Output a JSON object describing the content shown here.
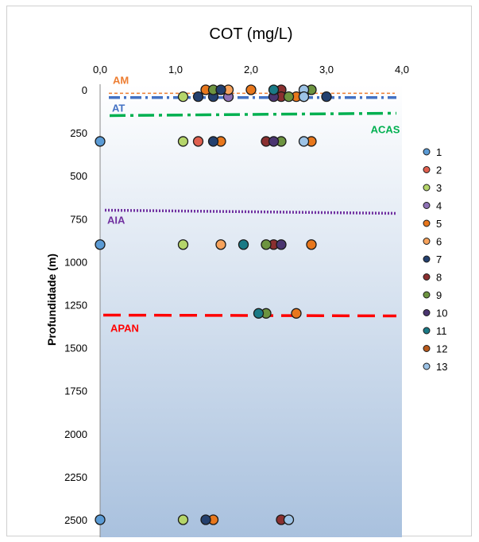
{
  "chart_data": {
    "type": "scatter",
    "title": "COT (mg/L)",
    "xlabel": "",
    "ylabel": "Profundidade (m)",
    "xlim": [
      0,
      4
    ],
    "ylim": [
      0,
      2500
    ],
    "y_inverted": true,
    "x_axis_position": "top",
    "xticks": [
      "0,0",
      "1,0",
      "2,0",
      "3,0",
      "4,0"
    ],
    "yticks": [
      "0",
      "250",
      "500",
      "750",
      "1000",
      "1250",
      "1500",
      "1750",
      "2000",
      "2250",
      "2500"
    ],
    "legend_position": "right",
    "background": "vertical gradient white to light blue",
    "series": [
      {
        "name": "1",
        "color": "#5b9bd5",
        "points": [
          [
            0.0,
            300
          ],
          [
            0.0,
            900
          ],
          [
            0.0,
            2500
          ]
        ]
      },
      {
        "name": "2",
        "color": "#e0604f",
        "points": [
          [
            1.3,
            300
          ]
        ]
      },
      {
        "name": "3",
        "color": "#b5d56a",
        "points": [
          [
            1.1,
            40
          ],
          [
            1.1,
            300
          ],
          [
            1.1,
            900
          ],
          [
            1.1,
            2500
          ]
        ]
      },
      {
        "name": "4",
        "color": "#8e72b5",
        "points": [
          [
            1.7,
            40
          ]
        ]
      },
      {
        "name": "5",
        "color": "#e8771c",
        "points": [
          [
            1.4,
            0
          ],
          [
            2.0,
            0
          ],
          [
            2.6,
            40
          ],
          [
            1.6,
            300
          ],
          [
            2.8,
            300
          ],
          [
            2.8,
            900
          ],
          [
            2.6,
            1300
          ],
          [
            1.5,
            2500
          ]
        ]
      },
      {
        "name": "6",
        "color": "#f7a35c",
        "points": [
          [
            1.7,
            0
          ],
          [
            1.6,
            900
          ]
        ]
      },
      {
        "name": "7",
        "color": "#24406e",
        "points": [
          [
            1.5,
            40
          ],
          [
            1.5,
            300
          ],
          [
            1.4,
            2500
          ]
        ]
      },
      {
        "name": "8",
        "color": "#8b3030",
        "points": [
          [
            2.4,
            0
          ],
          [
            2.4,
            40
          ],
          [
            2.2,
            300
          ],
          [
            2.3,
            900
          ],
          [
            2.4,
            2500
          ]
        ]
      },
      {
        "name": "9",
        "color": "#6d9440",
        "points": [
          [
            1.5,
            0
          ],
          [
            2.8,
            0
          ],
          [
            2.5,
            40
          ],
          [
            2.4,
            300
          ],
          [
            2.2,
            900
          ],
          [
            2.2,
            1300
          ]
        ]
      },
      {
        "name": "10",
        "color": "#4a3570",
        "points": [
          [
            2.3,
            40
          ],
          [
            2.3,
            300
          ],
          [
            2.4,
            900
          ]
        ]
      },
      {
        "name": "11",
        "color": "#1a7a86",
        "points": [
          [
            2.3,
            0
          ],
          [
            1.9,
            900
          ],
          [
            2.1,
            1300
          ]
        ]
      },
      {
        "name": "12",
        "color": "#b85a1c",
        "points": [
          [
            2.7,
            40
          ]
        ]
      },
      {
        "name": "13",
        "color": "#9dc3e6",
        "points": [
          [
            2.7,
            0
          ],
          [
            2.7,
            40
          ],
          [
            2.7,
            300
          ],
          [
            2.5,
            2500
          ]
        ]
      },
      {
        "name": "",
        "color": "#24406e",
        "points": [
          [
            1.6,
            0
          ],
          [
            3.0,
            40
          ],
          [
            1.3,
            40
          ]
        ]
      }
    ],
    "reference_lines": [
      {
        "label": "AM",
        "depth": 20,
        "color": "#ed7d31",
        "style": "short-dash"
      },
      {
        "label": "AT",
        "depth": 45,
        "color": "#4472c4",
        "style": "dash-dot"
      },
      {
        "label": "ACAS",
        "depth": 150,
        "color": "#00b050",
        "style": "long-dash-dot"
      },
      {
        "label": "AIA",
        "depth": 700,
        "color": "#7030a0",
        "style": "dotted"
      },
      {
        "label": "APAN",
        "depth": 1310,
        "color": "#ff0000",
        "style": "long-dash"
      }
    ]
  }
}
